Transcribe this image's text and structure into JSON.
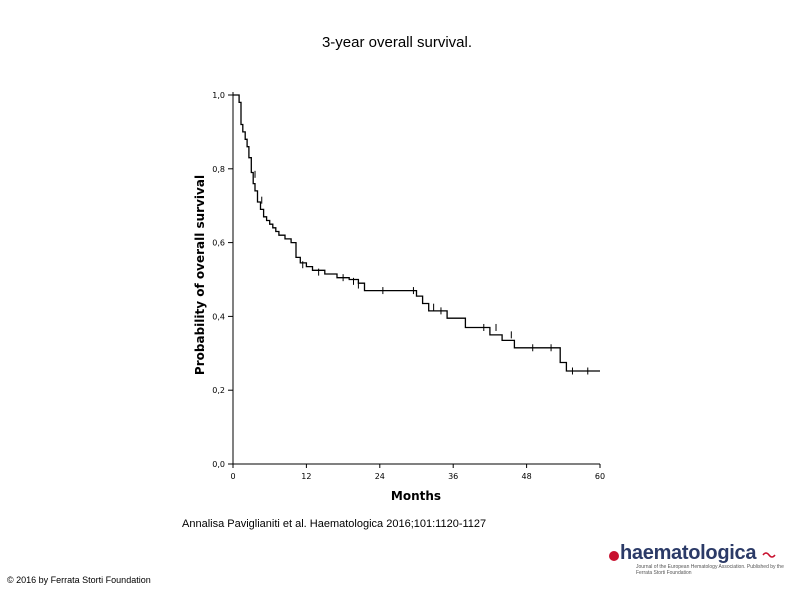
{
  "title": "3-year overall survival.",
  "citation": "Annalisa Paviglianiti et al. Haematologica 2016;101:1120-1127",
  "copyright": "© 2016 by Ferrata Storti Foundation",
  "logo": {
    "word": "haematologica",
    "subtitle": "Journal of the European Hematology Association. Published by the Ferrata Storti Foundation"
  },
  "colors": {
    "curve": "#000000",
    "axis": "#000000",
    "logo_accent": "#c8102e",
    "logo_text": "#2b3a67"
  },
  "chart_data": {
    "type": "line",
    "step": "post",
    "title": "3-year overall survival.",
    "xlabel": "Months",
    "ylabel": "Probability of overall survival",
    "xlim": [
      0,
      60
    ],
    "ylim": [
      0,
      1
    ],
    "xticks": [
      0,
      12,
      24,
      36,
      48,
      60
    ],
    "yticks": [
      0.0,
      0.2,
      0.4,
      0.6,
      0.8,
      1.0
    ],
    "ytick_labels": [
      "0,0",
      "0,2",
      "0,4",
      "0,6",
      "0,8",
      "1,0"
    ],
    "grid": false,
    "legend": "none",
    "series": [
      {
        "name": "Overall survival",
        "x": [
          0,
          1.0,
          1.3,
          1.6,
          2.0,
          2.3,
          2.6,
          3.0,
          3.3,
          3.6,
          4.0,
          4.5,
          5.0,
          5.5,
          6.0,
          6.5,
          7.0,
          7.5,
          8.5,
          9.5,
          10.3,
          11.0,
          12.0,
          13.0,
          15.0,
          17.0,
          19.0,
          20.5,
          21.5,
          30.0,
          31.0,
          32.0,
          35.0,
          38.0,
          42.0,
          44.0,
          46.0,
          53.5,
          54.5,
          60.0
        ],
        "y": [
          1.0,
          0.98,
          0.92,
          0.9,
          0.88,
          0.86,
          0.83,
          0.79,
          0.76,
          0.74,
          0.71,
          0.69,
          0.67,
          0.66,
          0.65,
          0.64,
          0.63,
          0.62,
          0.61,
          0.6,
          0.56,
          0.545,
          0.535,
          0.525,
          0.515,
          0.505,
          0.5,
          0.49,
          0.47,
          0.455,
          0.435,
          0.415,
          0.395,
          0.37,
          0.35,
          0.335,
          0.315,
          0.275,
          0.252,
          0.252
        ],
        "censored": [
          [
            3.6,
            0.785
          ],
          [
            4.7,
            0.715
          ],
          [
            11.4,
            0.54
          ],
          [
            14.0,
            0.52
          ],
          [
            18.0,
            0.505
          ],
          [
            19.7,
            0.495
          ],
          [
            20.5,
            0.485
          ],
          [
            24.5,
            0.47
          ],
          [
            29.5,
            0.47
          ],
          [
            32.8,
            0.425
          ],
          [
            34.0,
            0.415
          ],
          [
            41.0,
            0.37
          ],
          [
            43.0,
            0.37
          ],
          [
            45.5,
            0.35
          ],
          [
            49.0,
            0.315
          ],
          [
            52.0,
            0.315
          ],
          [
            55.5,
            0.252
          ],
          [
            58.0,
            0.252
          ]
        ]
      }
    ]
  }
}
